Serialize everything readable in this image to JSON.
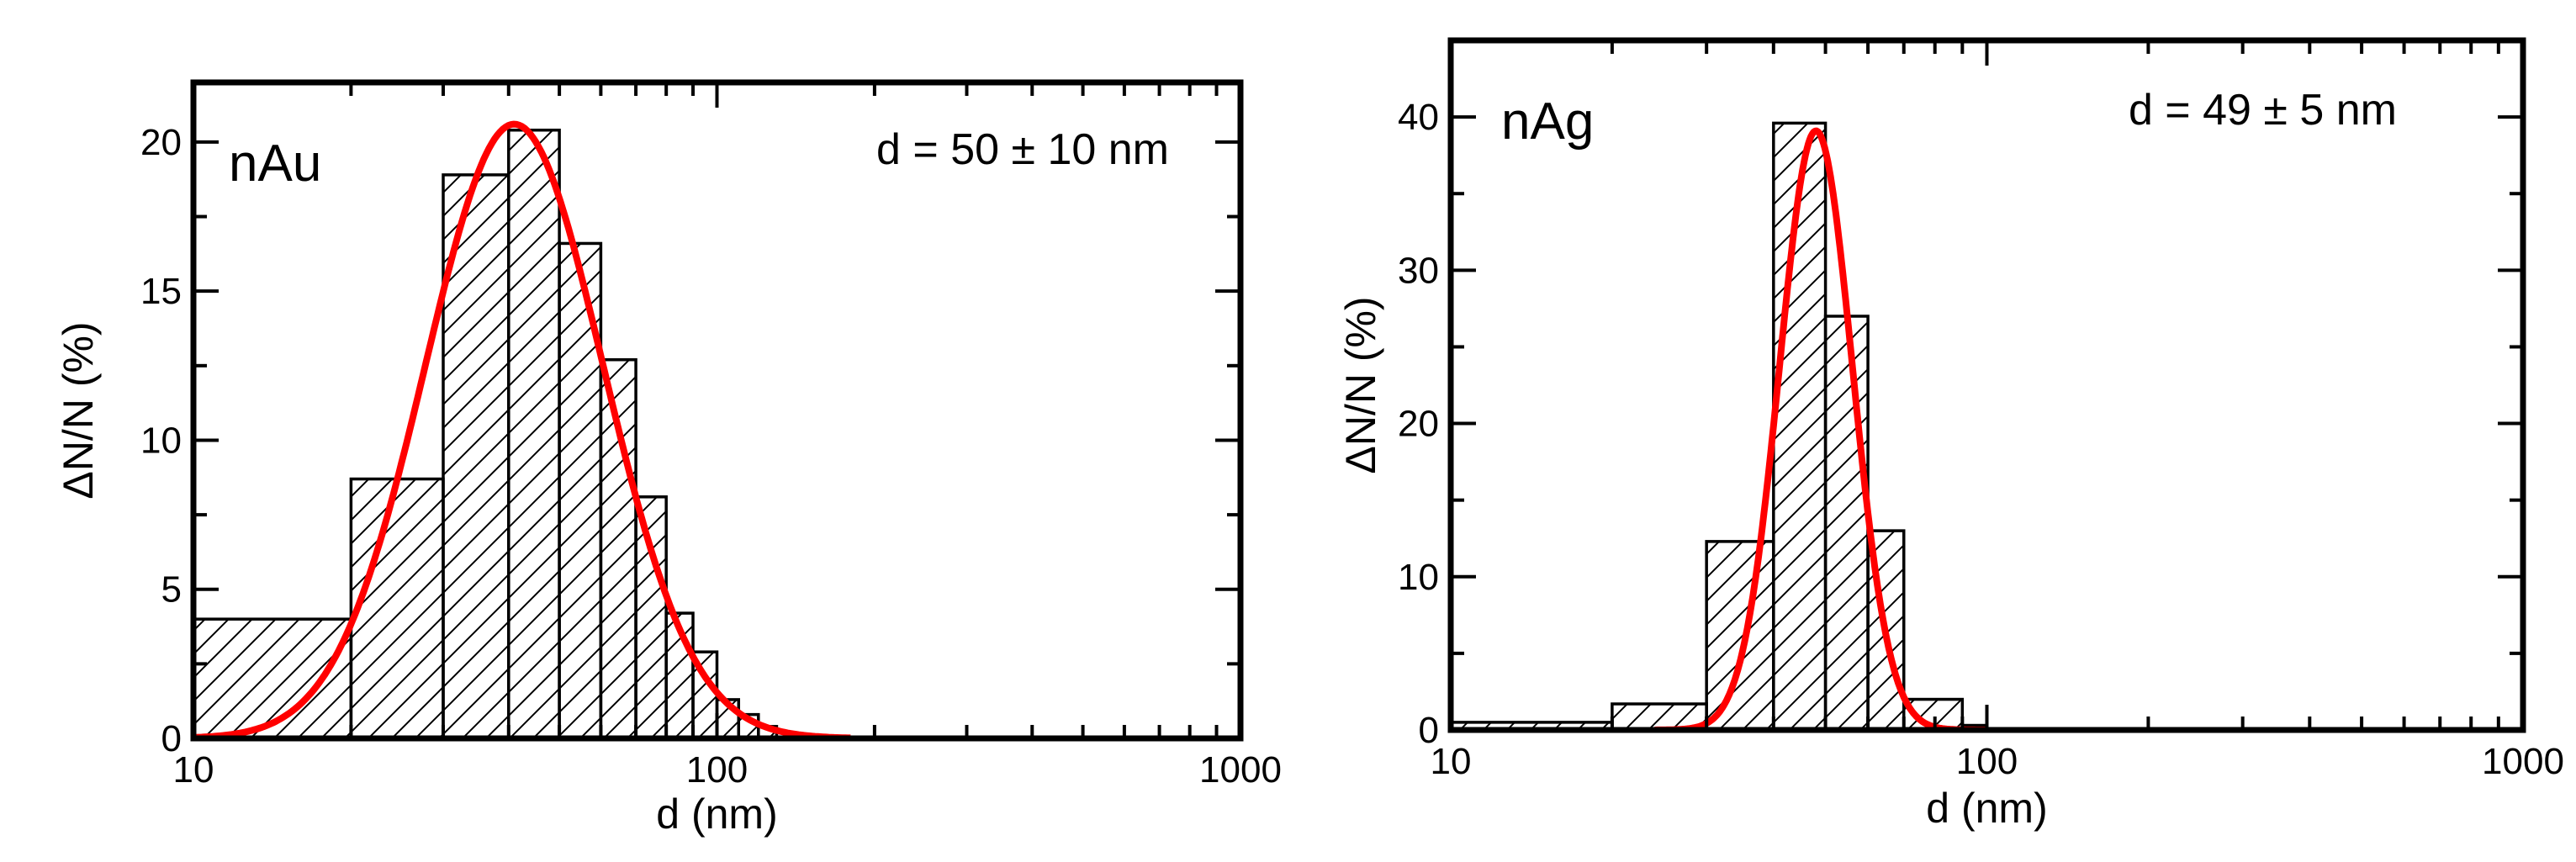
{
  "chart_data": [
    {
      "type": "bar",
      "sample_label": "nAu",
      "annotation": "d = 50 ± 10 nm",
      "xlabel": "d (nm)",
      "ylabel": "ΔN/N (%)",
      "x_scale": "log",
      "xlim": [
        10,
        1000
      ],
      "ylim": [
        0,
        22
      ],
      "x_ticks": [
        10,
        100,
        1000
      ],
      "x_tick_labels": [
        "10",
        "100",
        "1000"
      ],
      "y_ticks": [
        0,
        5,
        10,
        15,
        20
      ],
      "y_tick_labels": [
        "0",
        "5",
        "10",
        "15",
        "20"
      ],
      "hatch": "diagonal",
      "fit_color": "#ff0000",
      "bins": [
        {
          "x0": 10,
          "x1": 20,
          "value": 4.0
        },
        {
          "x0": 20,
          "x1": 30,
          "value": 8.7
        },
        {
          "x0": 30,
          "x1": 40,
          "value": 18.9
        },
        {
          "x0": 40,
          "x1": 50,
          "value": 20.4
        },
        {
          "x0": 50,
          "x1": 60,
          "value": 16.6
        },
        {
          "x0": 60,
          "x1": 70,
          "value": 12.7
        },
        {
          "x0": 70,
          "x1": 80,
          "value": 8.1
        },
        {
          "x0": 80,
          "x1": 90,
          "value": 4.2
        },
        {
          "x0": 90,
          "x1": 100,
          "value": 2.9
        },
        {
          "x0": 100,
          "x1": 110,
          "value": 1.3
        },
        {
          "x0": 110,
          "x1": 120,
          "value": 0.8
        },
        {
          "x0": 120,
          "x1": 130,
          "value": 0.4
        }
      ],
      "fit": {
        "model": "lognormal",
        "peak": 20.6,
        "mode": 41,
        "log10_sigma": 0.17,
        "x_range": [
          10,
          180
        ]
      }
    },
    {
      "type": "bar",
      "sample_label": "nAg",
      "annotation": "d = 49 ± 5 nm",
      "xlabel": "d (nm)",
      "ylabel": "ΔN/N (%)",
      "x_scale": "log",
      "xlim": [
        10,
        1000
      ],
      "ylim": [
        0,
        45
      ],
      "x_ticks": [
        10,
        100,
        1000
      ],
      "x_tick_labels": [
        "10",
        "100",
        "1000"
      ],
      "y_ticks": [
        0,
        10,
        20,
        30,
        40
      ],
      "y_tick_labels": [
        "0",
        "10",
        "20",
        "30",
        "40"
      ],
      "hatch": "diagonal",
      "fit_color": "#ff0000",
      "bins": [
        {
          "x0": 10,
          "x1": 20,
          "value": 0.5
        },
        {
          "x0": 20,
          "x1": 30,
          "value": 1.7
        },
        {
          "x0": 30,
          "x1": 40,
          "value": 12.3
        },
        {
          "x0": 40,
          "x1": 50,
          "value": 39.6
        },
        {
          "x0": 50,
          "x1": 60,
          "value": 27.0
        },
        {
          "x0": 60,
          "x1": 70,
          "value": 13.0
        },
        {
          "x0": 70,
          "x1": 90,
          "value": 2.0
        },
        {
          "x0": 90,
          "x1": 100,
          "value": 0.3
        }
      ],
      "fit": {
        "model": "lognormal",
        "peak": 39.1,
        "mode": 48,
        "log10_sigma": 0.068,
        "x_range": [
          24,
          100
        ]
      }
    }
  ]
}
